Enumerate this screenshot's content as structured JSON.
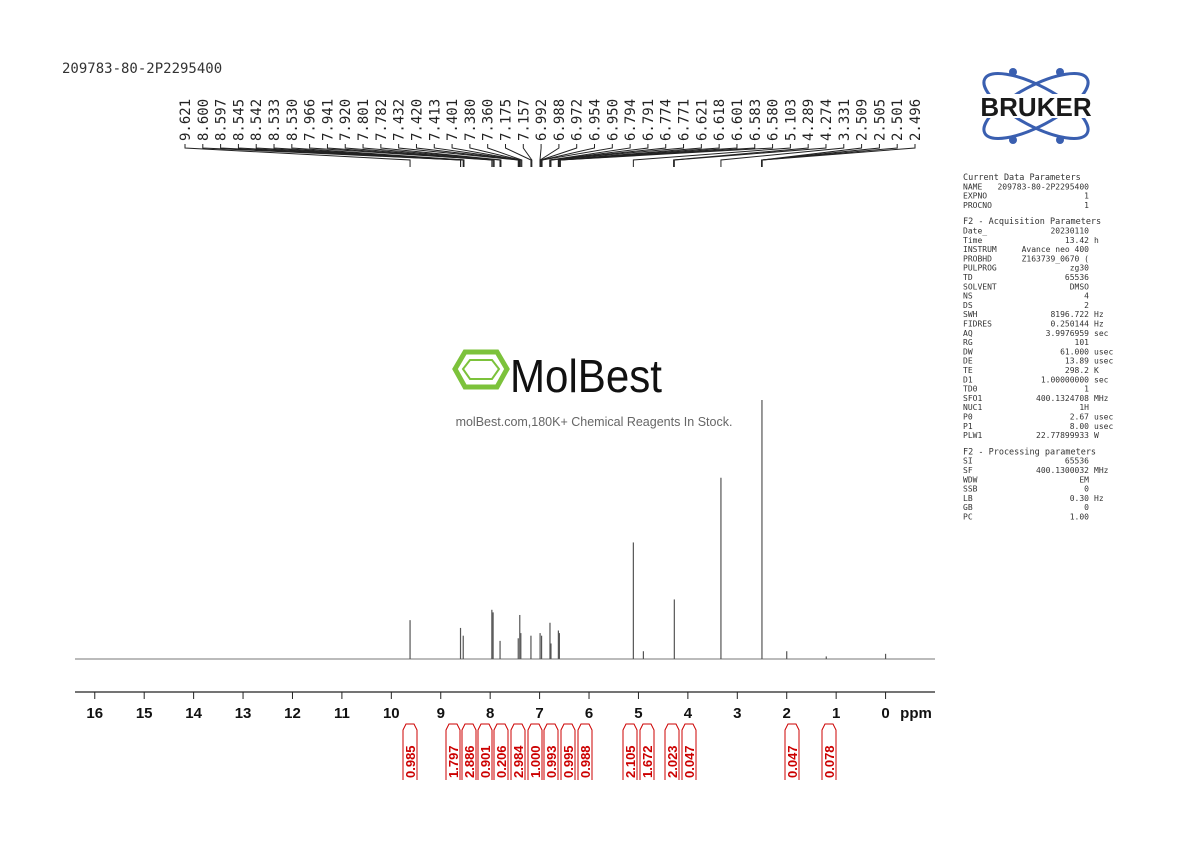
{
  "chart_data": {
    "type": "spectrum",
    "title": "209783-80-2P2295400",
    "x_label": "ppm",
    "xlim": [
      16.4,
      -1.0
    ],
    "xticks": [
      16,
      15,
      14,
      13,
      12,
      11,
      10,
      9,
      8,
      7,
      6,
      5,
      4,
      3,
      2,
      1,
      0
    ],
    "color": "#555555",
    "x": [
      9.621,
      8.6,
      8.545,
      7.966,
      7.941,
      7.8,
      7.432,
      7.401,
      7.38,
      7.175,
      6.99,
      6.96,
      6.79,
      6.77,
      6.62,
      6.6,
      5.103,
      4.9,
      4.274,
      3.331,
      2.501,
      2.0,
      1.2,
      0.0
    ],
    "values": [
      15,
      12,
      9,
      19,
      18,
      7,
      8,
      17,
      10,
      9,
      10,
      9,
      14,
      6,
      11,
      10,
      45,
      3,
      23,
      70,
      100,
      3,
      1,
      2
    ],
    "peak_labels": [
      9.621,
      {
        "value": 8.6,
        "label": "8.600"
      },
      8.597,
      8.545,
      8.542,
      8.533,
      {
        "value": 8.53,
        "label": "8.530"
      },
      7.966,
      7.941,
      {
        "value": 7.92,
        "label": "7.920"
      },
      7.801,
      7.782,
      7.432,
      {
        "value": 7.42,
        "label": "7.420"
      },
      7.413,
      7.401,
      {
        "value": 7.38,
        "label": "7.380"
      },
      {
        "value": 7.36,
        "label": "7.360"
      },
      7.175,
      7.157,
      6.992,
      6.988,
      6.972,
      6.954,
      {
        "value": 6.95,
        "label": "6.950"
      },
      6.794,
      6.791,
      6.774,
      6.771,
      6.621,
      6.618,
      6.601,
      6.583,
      {
        "value": 6.58,
        "label": "6.580"
      },
      5.103,
      4.289,
      4.274,
      3.331,
      2.509,
      2.505,
      2.501,
      2.496
    ],
    "integrals": [
      0.985,
      1.797,
      2.886,
      0.901,
      0.206,
      2.984,
      {
        "value": 1.0,
        "label": "1.000"
      },
      0.993,
      0.995,
      0.988,
      2.105,
      1.672,
      2.023,
      0.047,
      0.047,
      0.078
    ],
    "integral_color": "#cc0000"
  },
  "logo": {
    "brand": "BRUKER"
  },
  "watermark": {
    "name": "MolBest",
    "tagline": "molBest.com,180K+ Chemical Reagents In Stock."
  },
  "parameters": [
    {
      "heading": "Current Data Parameters",
      "rows": [
        [
          "NAME",
          "209783-80-2P2295400"
        ],
        [
          "EXPNO",
          "1"
        ],
        [
          "PROCNO",
          "1"
        ]
      ]
    },
    {
      "heading": "F2 - Acquisition Parameters",
      "rows": [
        [
          "Date_",
          "20230110"
        ],
        [
          "Time",
          "13.42",
          "h"
        ],
        [
          "INSTRUM",
          "Avance neo 400"
        ],
        [
          "PROBHD",
          "Z163739_0670 ("
        ],
        [
          "PULPROG",
          "zg30"
        ],
        [
          "TD",
          "65536"
        ],
        [
          "SOLVENT",
          "DMSO"
        ],
        [
          "NS",
          "4"
        ],
        [
          "DS",
          "2"
        ],
        [
          "SWH",
          "8196.722",
          "Hz"
        ],
        [
          "FIDRES",
          "0.250144",
          "Hz"
        ],
        [
          "AQ",
          "3.9976959",
          "sec"
        ],
        [
          "RG",
          "101"
        ],
        [
          "DW",
          "61.000",
          "usec"
        ],
        [
          "DE",
          "13.89",
          "usec"
        ],
        [
          "TE",
          "298.2",
          "K"
        ],
        [
          "D1",
          "1.00000000",
          "sec"
        ],
        [
          "TD0",
          "1"
        ],
        [
          "SFO1",
          "400.1324708",
          "MHz"
        ],
        [
          "NUC1",
          "1H"
        ],
        [
          "P0",
          "2.67",
          "usec"
        ],
        [
          "P1",
          "8.00",
          "usec"
        ],
        [
          "PLW1",
          "22.77899933",
          "W"
        ]
      ]
    },
    {
      "heading": "F2 - Processing parameters",
      "rows": [
        [
          "SI",
          "65536"
        ],
        [
          "SF",
          "400.1300032",
          "MHz"
        ],
        [
          "WDW",
          "EM"
        ],
        [
          "SSB",
          "0"
        ],
        [
          "LB",
          "0.30",
          "Hz"
        ],
        [
          "GB",
          "0"
        ],
        [
          "PC",
          "1.00"
        ]
      ]
    }
  ]
}
